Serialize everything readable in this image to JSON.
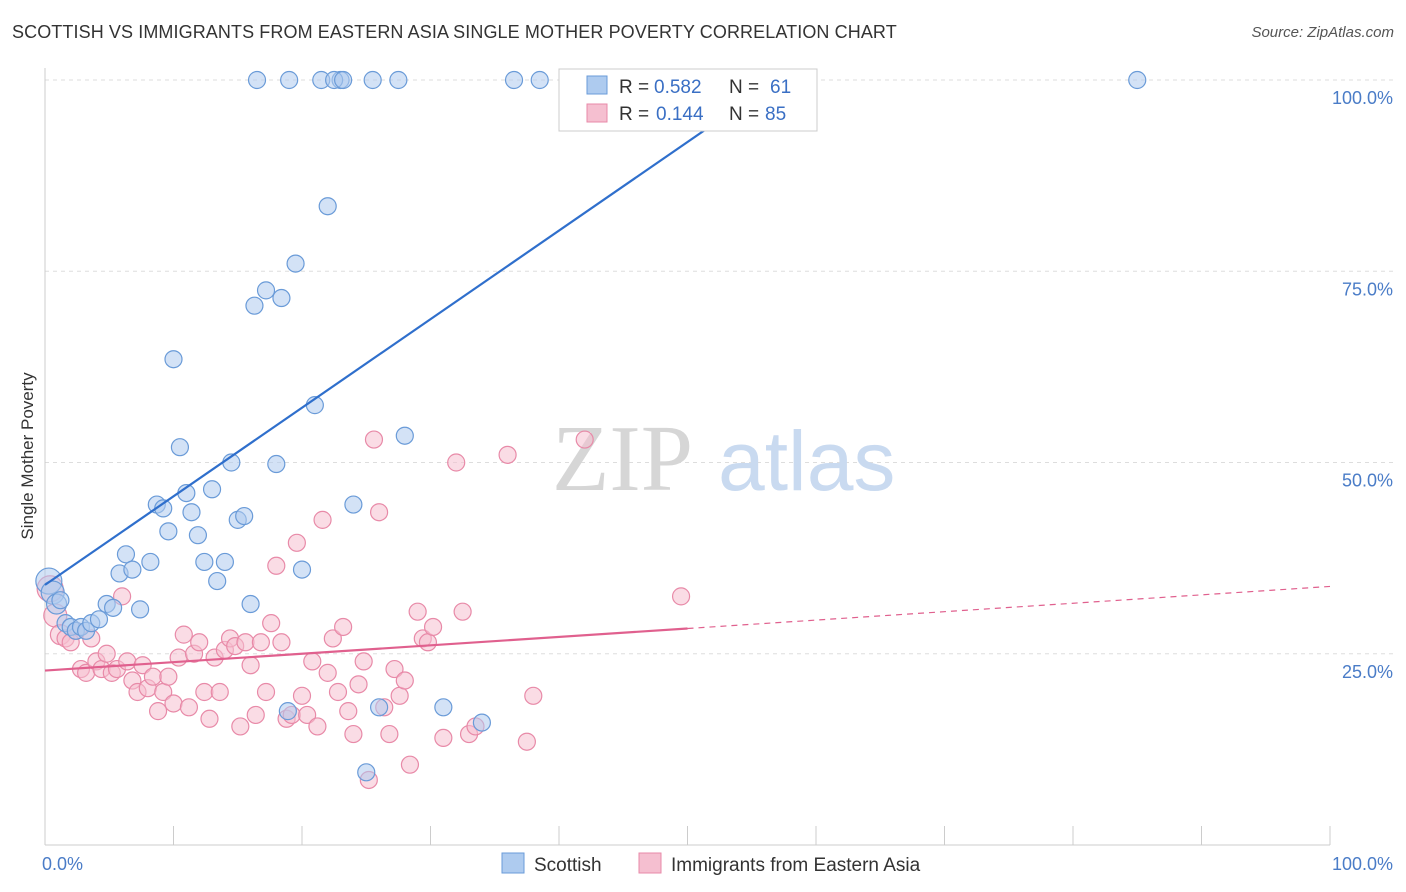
{
  "title": "SCOTTISH VS IMMIGRANTS FROM EASTERN ASIA SINGLE MOTHER POVERTY CORRELATION CHART",
  "source": "Source: ZipAtlas.com",
  "watermark": {
    "zip": "ZIP",
    "atlas": "atlas"
  },
  "colors": {
    "scottish_fill": "#aecbef",
    "scottish_stroke": "#6a9bd8",
    "scottish_line": "#2f6fcc",
    "eastasia_fill": "#f5bfd0",
    "eastasia_stroke": "#e88aa8",
    "eastasia_line": "#e0608e",
    "grid": "#dddddd",
    "tick_label": "#4a7cc7"
  },
  "legend": {
    "rows": [
      {
        "r_label": "R =",
        "r_value": "0.582",
        "n_label": "N =",
        "n_value": "61"
      },
      {
        "r_label": "R =",
        "r_value": "0.144",
        "n_label": "N =",
        "n_value": "85"
      }
    ]
  },
  "chart_data": {
    "type": "scatter",
    "title": "SCOTTISH VS IMMIGRANTS FROM EASTERN ASIA SINGLE MOTHER POVERTY CORRELATION CHART",
    "xlabel": "",
    "ylabel": "Single Mother Poverty",
    "xlim": [
      0,
      100
    ],
    "ylim": [
      0,
      100
    ],
    "x_tick_labels": [
      "0.0%",
      "100.0%"
    ],
    "y_ticks": [
      25,
      50,
      75,
      100
    ],
    "y_tick_labels": [
      "25.0%",
      "50.0%",
      "75.0%",
      "100.0%"
    ],
    "grid": true,
    "legend_position": "top-center",
    "series": [
      {
        "name": "Scottish",
        "r": 0.582,
        "n": 61,
        "trend": {
          "x0": 0,
          "y0": 34,
          "x1": 57,
          "y1": 100
        },
        "points": [
          [
            0.3,
            34.5
          ],
          [
            0.6,
            33
          ],
          [
            0.9,
            31.5
          ],
          [
            1.2,
            32
          ],
          [
            1.6,
            29
          ],
          [
            2.0,
            28.5
          ],
          [
            2.4,
            28
          ],
          [
            2.8,
            28.5
          ],
          [
            3.2,
            28
          ],
          [
            3.6,
            29
          ],
          [
            4.2,
            29.5
          ],
          [
            4.8,
            31.5
          ],
          [
            5.3,
            31
          ],
          [
            5.8,
            35.5
          ],
          [
            6.3,
            38
          ],
          [
            6.8,
            36
          ],
          [
            7.4,
            30.8
          ],
          [
            8.2,
            37
          ],
          [
            8.7,
            44.5
          ],
          [
            9.2,
            44
          ],
          [
            9.6,
            41
          ],
          [
            10.0,
            63.5
          ],
          [
            10.5,
            52
          ],
          [
            11.0,
            46
          ],
          [
            11.4,
            43.5
          ],
          [
            11.9,
            40.5
          ],
          [
            12.4,
            37
          ],
          [
            13.0,
            46.5
          ],
          [
            13.4,
            34.5
          ],
          [
            14.0,
            37
          ],
          [
            14.5,
            50
          ],
          [
            15.0,
            42.5
          ],
          [
            15.5,
            43
          ],
          [
            16.0,
            31.5
          ],
          [
            16.3,
            70.5
          ],
          [
            17.2,
            72.5
          ],
          [
            18.0,
            49.8
          ],
          [
            18.4,
            71.5
          ],
          [
            18.9,
            17.5
          ],
          [
            19.5,
            76
          ],
          [
            20.0,
            36
          ],
          [
            21.0,
            57.5
          ],
          [
            22.0,
            83.5
          ],
          [
            23.0,
            100
          ],
          [
            24.0,
            44.5
          ],
          [
            25.0,
            9.5
          ],
          [
            26.0,
            18
          ],
          [
            28.0,
            53.5
          ],
          [
            31.0,
            18
          ],
          [
            34.0,
            16
          ],
          [
            16.5,
            100
          ],
          [
            19.0,
            100
          ],
          [
            21.5,
            100
          ],
          [
            22.5,
            100
          ],
          [
            23.2,
            100
          ],
          [
            25.5,
            100
          ],
          [
            27.5,
            100
          ],
          [
            36.5,
            100
          ],
          [
            38.5,
            100
          ],
          [
            41.0,
            100
          ],
          [
            85.0,
            100
          ]
        ]
      },
      {
        "name": "Immigrants from Eastern Asia",
        "r": 0.144,
        "n": 85,
        "trend": {
          "x0": 0,
          "y0": 22.8,
          "x1": 50,
          "y1": 28.3
        },
        "trend_dashed": {
          "x0": 50,
          "y0": 28.3,
          "x1": 100,
          "y1": 33.8
        },
        "points": [
          [
            0.4,
            33.5
          ],
          [
            0.8,
            30
          ],
          [
            1.2,
            27.5
          ],
          [
            1.6,
            27
          ],
          [
            2.0,
            26.5
          ],
          [
            2.4,
            28
          ],
          [
            2.8,
            23
          ],
          [
            3.2,
            22.5
          ],
          [
            3.6,
            27
          ],
          [
            4.0,
            24
          ],
          [
            4.4,
            23
          ],
          [
            4.8,
            25
          ],
          [
            5.2,
            22.5
          ],
          [
            5.6,
            23
          ],
          [
            6.0,
            32.5
          ],
          [
            6.4,
            24
          ],
          [
            6.8,
            21.5
          ],
          [
            7.2,
            20
          ],
          [
            7.6,
            23.5
          ],
          [
            8.0,
            20.5
          ],
          [
            8.4,
            22
          ],
          [
            8.8,
            17.5
          ],
          [
            9.2,
            20
          ],
          [
            9.6,
            22
          ],
          [
            10.0,
            18.5
          ],
          [
            10.4,
            24.5
          ],
          [
            10.8,
            27.5
          ],
          [
            11.2,
            18
          ],
          [
            11.6,
            25
          ],
          [
            12.0,
            26.5
          ],
          [
            12.4,
            20
          ],
          [
            12.8,
            16.5
          ],
          [
            13.2,
            24.5
          ],
          [
            13.6,
            20
          ],
          [
            14.0,
            25.5
          ],
          [
            14.4,
            27
          ],
          [
            14.8,
            26
          ],
          [
            15.2,
            15.5
          ],
          [
            15.6,
            26.5
          ],
          [
            16.0,
            23.5
          ],
          [
            16.4,
            17
          ],
          [
            16.8,
            26.5
          ],
          [
            17.2,
            20
          ],
          [
            17.6,
            29
          ],
          [
            18.0,
            36.5
          ],
          [
            18.4,
            26.5
          ],
          [
            18.8,
            16.5
          ],
          [
            19.2,
            17
          ],
          [
            19.6,
            39.5
          ],
          [
            20.0,
            19.5
          ],
          [
            20.4,
            17
          ],
          [
            20.8,
            24
          ],
          [
            21.2,
            15.5
          ],
          [
            21.6,
            42.5
          ],
          [
            22.0,
            22.5
          ],
          [
            22.4,
            27
          ],
          [
            22.8,
            20
          ],
          [
            23.2,
            28.5
          ],
          [
            23.6,
            17.5
          ],
          [
            24.0,
            14.5
          ],
          [
            24.4,
            21
          ],
          [
            24.8,
            24
          ],
          [
            25.2,
            8.5
          ],
          [
            25.6,
            53
          ],
          [
            26.0,
            43.5
          ],
          [
            26.4,
            18
          ],
          [
            26.8,
            14.5
          ],
          [
            27.2,
            23
          ],
          [
            27.6,
            19.5
          ],
          [
            28.0,
            21.5
          ],
          [
            28.4,
            10.5
          ],
          [
            29.0,
            30.5
          ],
          [
            29.4,
            27
          ],
          [
            29.8,
            26.5
          ],
          [
            30.2,
            28.5
          ],
          [
            31.0,
            14
          ],
          [
            32.0,
            50
          ],
          [
            32.5,
            30.5
          ],
          [
            33.0,
            14.5
          ],
          [
            33.5,
            15.5
          ],
          [
            36.0,
            51
          ],
          [
            37.5,
            13.5
          ],
          [
            38.0,
            19.5
          ],
          [
            42.0,
            53
          ],
          [
            49.5,
            32.5
          ]
        ]
      }
    ]
  }
}
